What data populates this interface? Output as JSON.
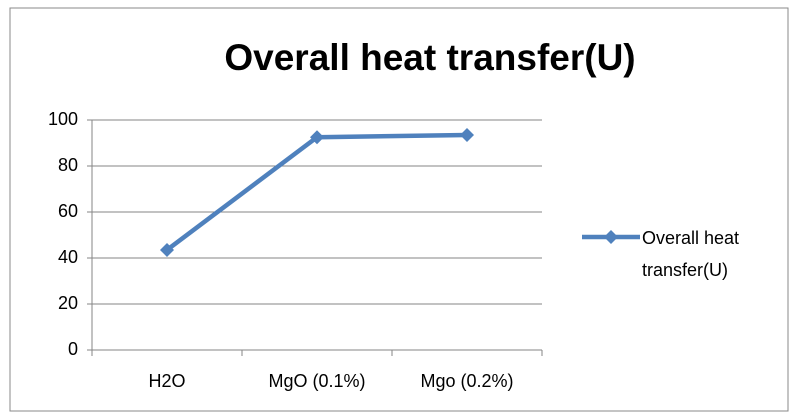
{
  "chart_data": {
    "type": "line",
    "title": "Overall heat transfer(U)",
    "categories": [
      "H2O",
      "MgO (0.1%)",
      "Mgo (0.2%)"
    ],
    "series": [
      {
        "name": "Overall heat transfer(U)",
        "color": "#4f81bd",
        "values": [
          43.5,
          92.5,
          93.5
        ]
      }
    ],
    "ylim": [
      0,
      100
    ],
    "yticks": [
      0,
      20,
      40,
      60,
      80,
      100
    ],
    "grid": true,
    "legend": "right"
  }
}
